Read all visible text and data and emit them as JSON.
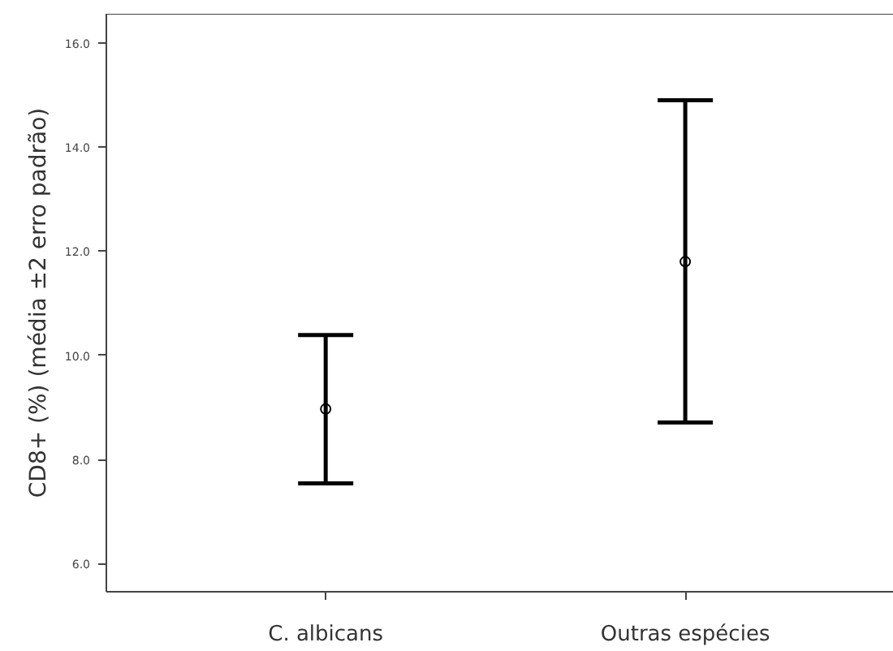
{
  "chart_data": {
    "type": "scatter",
    "ylabel": "CD8+ (%) (média ±2 erro padrão)",
    "categories": [
      "C. albicans",
      "Outras espécies"
    ],
    "values": [
      8.97,
      11.8
    ],
    "errors": [
      [
        7.54,
        10.39
      ],
      [
        8.71,
        14.9
      ]
    ],
    "color": "#000000",
    "marker": "circle",
    "ylim": [
      5.46,
      16.56
    ],
    "yticks": [
      {
        "value": 6,
        "label": "6.0"
      },
      {
        "value": 8,
        "label": "8.0"
      },
      {
        "value": 10,
        "label": "10.0"
      },
      {
        "value": 12,
        "label": "12.0"
      },
      {
        "value": 14,
        "label": "14.0"
      },
      {
        "value": 16,
        "label": "16.0"
      }
    ],
    "grid": false
  }
}
